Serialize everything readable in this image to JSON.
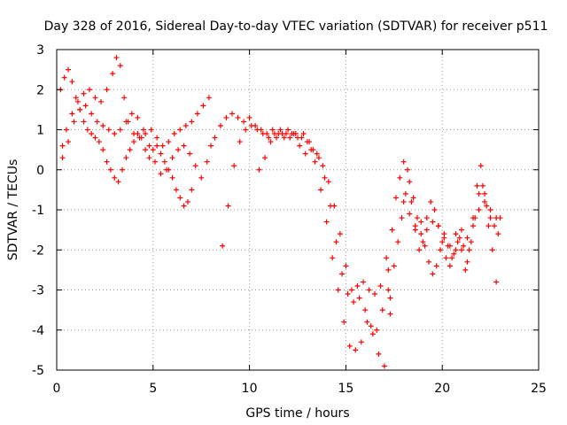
{
  "chart_data": {
    "type": "scatter",
    "title": "Day 328 of 2016, Sidereal Day-to-day VTEC variation (SDTVAR) for receiver p511",
    "xlabel": "GPS time / hours",
    "ylabel": "SDTVAR / TECUs",
    "xlim": [
      0,
      25
    ],
    "ylim": [
      -5,
      3
    ],
    "xticks": [
      0,
      5,
      10,
      15,
      20,
      25
    ],
    "yticks": [
      -5,
      -4,
      -3,
      -2,
      -1,
      0,
      1,
      2,
      3
    ],
    "grid": true,
    "marker": "+",
    "color": "#ff0000",
    "series": [
      {
        "name": "track-1",
        "x": [
          0.2,
          0.4,
          0.6,
          0.8,
          1.0,
          1.2,
          1.4,
          1.6,
          1.8,
          2.0,
          2.2,
          2.4,
          2.6,
          2.8,
          3.0,
          3.2,
          3.4,
          3.6,
          3.8,
          4.0,
          4.2,
          4.4,
          4.6,
          4.8,
          5.0,
          5.2,
          5.4,
          5.6,
          5.8,
          6.0,
          6.2,
          6.4,
          6.6,
          6.8,
          7.0
        ],
        "y": [
          2.0,
          2.3,
          2.5,
          2.2,
          1.8,
          1.5,
          1.2,
          1.0,
          0.9,
          0.8,
          0.7,
          0.5,
          0.2,
          0.0,
          -0.2,
          -0.3,
          0.0,
          0.3,
          0.5,
          0.7,
          0.9,
          0.8,
          0.5,
          0.3,
          0.5,
          0.6,
          0.4,
          0.2,
          0.0,
          -0.2,
          -0.5,
          -0.7,
          -0.9,
          -0.8,
          -0.5
        ]
      },
      {
        "name": "track-2",
        "x": [
          0.3,
          0.5,
          0.8,
          1.1,
          1.4,
          1.7,
          2.0,
          2.3,
          2.6,
          2.9,
          3.1,
          3.3,
          3.5,
          3.7,
          4.0,
          4.3,
          4.6,
          4.9,
          5.2,
          5.5,
          5.8,
          6.1,
          6.4,
          6.7,
          7.0,
          7.3,
          7.6,
          7.9
        ],
        "y": [
          0.6,
          1.0,
          1.4,
          1.7,
          1.9,
          2.0,
          1.8,
          1.7,
          2.0,
          2.4,
          2.8,
          2.6,
          1.8,
          1.2,
          0.9,
          0.8,
          0.9,
          1.0,
          0.8,
          0.6,
          0.7,
          0.9,
          1.0,
          1.1,
          1.2,
          1.4,
          1.6,
          1.8
        ]
      },
      {
        "name": "track-3",
        "x": [
          0.3,
          0.6,
          0.9,
          1.2,
          1.5,
          1.8,
          2.1,
          2.4,
          2.7,
          3.0,
          3.3,
          3.6,
          3.9,
          4.2,
          4.5,
          4.8,
          5.1,
          5.4,
          5.7,
          6.0,
          6.3,
          6.6,
          6.9,
          7.2,
          7.5,
          7.8,
          8.0
        ],
        "y": [
          0.3,
          0.7,
          1.2,
          1.5,
          1.6,
          1.4,
          1.2,
          1.1,
          1.0,
          0.9,
          1.0,
          1.2,
          1.4,
          1.3,
          1.0,
          0.6,
          0.2,
          -0.1,
          0.0,
          0.3,
          0.5,
          0.6,
          0.4,
          0.1,
          -0.2,
          0.2,
          0.6
        ]
      },
      {
        "name": "track-4",
        "x": [
          8.2,
          8.5,
          8.8,
          9.1,
          9.4,
          9.7,
          10.0,
          10.3,
          10.6,
          10.9,
          11.2,
          11.5,
          11.8,
          12.1,
          12.4,
          12.7,
          13.0,
          13.3,
          13.6,
          13.9,
          14.2,
          14.5,
          14.8,
          15.1,
          15.4,
          15.7,
          16.0,
          16.3,
          16.6,
          16.9,
          17.2
        ],
        "y": [
          0.8,
          1.1,
          1.3,
          1.4,
          1.3,
          1.2,
          1.3,
          1.1,
          1.0,
          0.9,
          1.0,
          0.9,
          0.8,
          0.8,
          0.9,
          0.8,
          0.7,
          0.5,
          0.3,
          -0.2,
          -0.9,
          -1.8,
          -2.6,
          -3.1,
          -3.3,
          -3.2,
          -3.5,
          -3.9,
          -4.0,
          -3.5,
          -3.0
        ]
      },
      {
        "name": "track-5",
        "x": [
          8.6,
          8.9,
          9.2,
          9.5,
          9.8,
          10.1,
          10.4,
          10.7,
          11.0,
          11.3,
          11.6,
          11.9,
          12.2,
          12.5,
          12.8,
          13.1,
          13.4,
          13.7,
          14.0,
          14.3,
          14.6,
          14.9,
          15.2,
          15.5,
          15.8,
          16.1,
          16.4,
          16.7,
          17.0,
          17.3
        ],
        "y": [
          -1.9,
          -0.9,
          0.1,
          0.7,
          1.0,
          1.1,
          1.0,
          0.9,
          0.8,
          0.9,
          1.0,
          0.9,
          0.9,
          0.8,
          0.9,
          0.7,
          0.2,
          -0.5,
          -1.3,
          -2.2,
          -3.0,
          -3.8,
          -4.4,
          -4.5,
          -4.3,
          -3.8,
          -4.1,
          -4.6,
          -4.9,
          -3.6
        ]
      },
      {
        "name": "track-6",
        "x": [
          10.5,
          10.8,
          11.1,
          11.4,
          11.7,
          12.0,
          12.3,
          12.6,
          12.9,
          13.2,
          13.5,
          13.8,
          14.1,
          14.4,
          14.7,
          15.0,
          15.3,
          15.6,
          15.9,
          16.2,
          16.5,
          16.8,
          17.1
        ],
        "y": [
          0.0,
          0.3,
          0.7,
          0.8,
          0.9,
          1.0,
          0.9,
          0.6,
          0.4,
          0.5,
          0.4,
          0.1,
          -0.3,
          -0.9,
          -1.6,
          -2.4,
          -3.0,
          -2.9,
          -2.8,
          -3.0,
          -3.1,
          -2.9,
          -2.2
        ]
      },
      {
        "name": "track-7",
        "x": [
          17.2,
          17.4,
          17.6,
          17.8,
          18.0,
          18.2,
          18.4,
          18.6,
          18.8,
          19.0,
          19.2,
          19.4,
          19.6,
          19.8,
          20.0,
          20.2,
          20.4,
          20.6,
          20.8,
          21.0,
          21.2,
          21.4,
          21.6,
          21.8,
          22.0,
          22.2,
          22.4,
          22.6,
          22.8
        ],
        "y": [
          -2.5,
          -1.5,
          -0.7,
          -0.2,
          0.2,
          0.0,
          -0.8,
          -1.5,
          -2.0,
          -1.8,
          -1.2,
          -0.8,
          -1.0,
          -1.4,
          -1.8,
          -2.2,
          -2.4,
          -2.1,
          -1.8,
          -2.0,
          -2.5,
          -2.0,
          -1.2,
          -0.4,
          0.1,
          -0.6,
          -1.4,
          -2.0,
          -2.8
        ]
      },
      {
        "name": "track-8",
        "x": [
          17.3,
          17.5,
          17.7,
          17.9,
          18.1,
          18.3,
          18.5,
          18.7,
          18.9,
          19.1,
          19.3,
          19.5,
          19.7,
          19.9,
          20.1,
          20.3,
          20.5,
          20.7,
          20.9,
          21.1,
          21.3,
          21.5,
          21.7,
          21.9,
          22.1,
          22.3,
          22.5,
          22.7,
          22.9
        ],
        "y": [
          -3.2,
          -2.4,
          -1.8,
          -1.2,
          -0.6,
          -0.3,
          -0.7,
          -1.2,
          -1.6,
          -1.9,
          -2.3,
          -2.6,
          -2.4,
          -2.0,
          -1.6,
          -1.9,
          -2.2,
          -2.0,
          -1.7,
          -1.9,
          -2.3,
          -1.8,
          -1.2,
          -0.6,
          -0.4,
          -0.9,
          -1.2,
          -1.4,
          -1.6
        ]
      },
      {
        "name": "track-9",
        "x": [
          18.0,
          18.3,
          18.6,
          18.9,
          19.2,
          19.5,
          19.8,
          20.1,
          20.4,
          20.7,
          21.0,
          21.3,
          21.6,
          21.9,
          22.2,
          22.5,
          22.8,
          23.0
        ],
        "y": [
          -0.8,
          -1.1,
          -1.4,
          -1.3,
          -1.5,
          -1.3,
          -1.4,
          -1.7,
          -1.9,
          -1.6,
          -1.5,
          -1.7,
          -1.4,
          -1.0,
          -0.8,
          -1.0,
          -1.2,
          -1.2
        ]
      }
    ]
  }
}
